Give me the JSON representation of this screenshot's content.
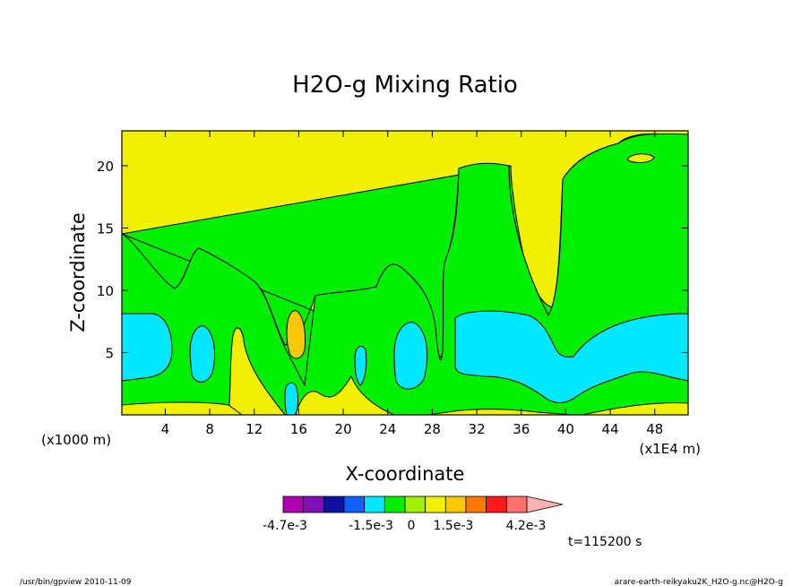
{
  "chart_data": {
    "type": "heatmap",
    "title": "H2O-g Mixing Ratio",
    "xlabel": "X-coordinate",
    "ylabel": "Z-coordinate",
    "x_unit_note": "(x1E4 m)",
    "y_unit_note": "(x1000 m)",
    "xlim": [
      0.1,
      51.0
    ],
    "ylim": [
      0.0,
      22.8
    ],
    "x_ticks": [
      4,
      8,
      12,
      16,
      20,
      24,
      28,
      32,
      36,
      40,
      44,
      48
    ],
    "y_ticks": [
      5,
      10,
      15,
      20
    ],
    "grid": false,
    "colorbar": {
      "labels": [
        "-4.7e-3",
        "-1.5e-3",
        "0",
        "1.5e-3",
        "4.2e-3"
      ],
      "colors": [
        "#b000b0",
        "#7d10b8",
        "#1010a0",
        "#1060ff",
        "#00e8ff",
        "#00ee00",
        "#a0f000",
        "#f0f000",
        "#f8c800",
        "#ff7800",
        "#ff1a1a",
        "#ff7070",
        "#ffb0b0"
      ],
      "extend": "max"
    },
    "time_label": "t=115200 s",
    "field_description": {
      "background_level": "#f0f000",
      "regions": [
        {
          "level": "#00ee00",
          "note": "moist layer below ~9 km with plume columns near x=30-36 and x=40-50 reaching top"
        },
        {
          "level": "#00e8ff",
          "note": "maxima near z=5 km at x=0-5, x=7-9, x=21-22, x=26-28, x=30-50"
        },
        {
          "level": "#f8c800",
          "note": "small patch near x=16, z=7"
        }
      ]
    }
  },
  "footer": {
    "left": "/usr/bin/gpview   2010-11-09",
    "right": "arare-earth-reikyaku2K_H2O-g.nc@H2O-g"
  }
}
